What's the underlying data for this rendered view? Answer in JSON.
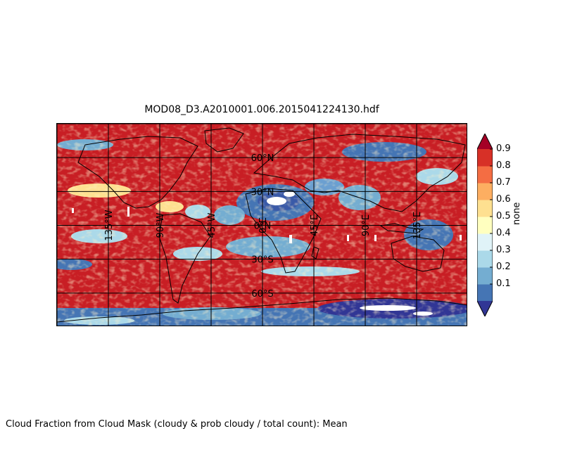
{
  "title": "MOD08_D3.A2010001.006.2015041224130.hdf",
  "caption": "Cloud Fraction from Cloud Mask (cloudy & prob cloudy / total count): Mean",
  "map": {
    "projection": "equirectangular",
    "lat_labels": [
      "60°N",
      "30°N",
      "0°N",
      "30°S",
      "60°S"
    ],
    "lon_labels": [
      "135°W",
      "90°W",
      "45°W",
      "0°E",
      "45°E",
      "90°E",
      "135°E"
    ],
    "lat_lines": [
      90,
      60,
      30,
      0,
      -30,
      -60,
      -90
    ],
    "lon_lines": [
      -180,
      -135,
      -90,
      -45,
      0,
      45,
      90,
      135,
      180
    ],
    "missing_color": "#ffffff",
    "coastline_color": "#000000"
  },
  "colorbar": {
    "label": "none",
    "ticks": [
      "0.9",
      "0.8",
      "0.7",
      "0.6",
      "0.5",
      "0.4",
      "0.3",
      "0.2",
      "0.1"
    ],
    "min": 0.0,
    "max": 1.0,
    "colors": [
      "#313695",
      "#4575b4",
      "#74add1",
      "#abd9e9",
      "#e0f3f8",
      "#ffffbf",
      "#fee090",
      "#fdae61",
      "#f46d43",
      "#d73027",
      "#a50026"
    ],
    "extend": "both"
  }
}
